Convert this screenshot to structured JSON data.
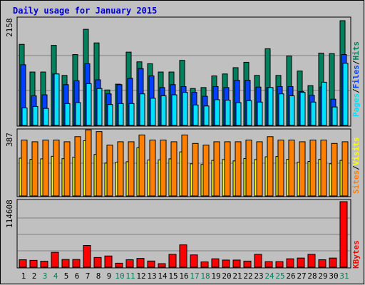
{
  "colors": {
    "background": "#c0c0c0",
    "title": "#0000cc",
    "hits": "#00805c",
    "files": "#0040ff",
    "pages": "#00e0ff",
    "visits": "#ffff00",
    "sites": "#ff8000",
    "kbytes": "#ff0000",
    "weekend": "#00805c",
    "weekday": "#000000"
  },
  "chart_data": [
    {
      "type": "bar",
      "title": "Daily usage for January 2015",
      "ymax_label": "2158",
      "ylim": [
        0,
        2158
      ],
      "legend_position": "right",
      "categories": [
        "1",
        "2",
        "3",
        "4",
        "5",
        "6",
        "7",
        "8",
        "9",
        "10",
        "11",
        "12",
        "13",
        "14",
        "15",
        "16",
        "17",
        "18",
        "19",
        "20",
        "21",
        "22",
        "23",
        "24",
        "25",
        "26",
        "27",
        "28",
        "29",
        "30",
        "31"
      ],
      "weekend_days": [
        "3",
        "4",
        "10",
        "11",
        "17",
        "18",
        "24",
        "25",
        "31"
      ],
      "series": [
        {
          "name": "Hits",
          "values": [
            1670,
            1100,
            1100,
            1650,
            1030,
            1460,
            1980,
            1700,
            730,
            850,
            1510,
            1310,
            1270,
            1100,
            1100,
            1340,
            760,
            780,
            1020,
            1060,
            1190,
            1300,
            1030,
            1580,
            1030,
            1430,
            1120,
            820,
            1490,
            1480,
            2158
          ]
        },
        {
          "name": "Files",
          "values": [
            1250,
            610,
            630,
            1060,
            840,
            920,
            1270,
            940,
            650,
            840,
            970,
            1170,
            1020,
            780,
            840,
            800,
            680,
            600,
            800,
            780,
            930,
            930,
            790,
            780,
            800,
            800,
            700,
            620,
            790,
            540,
            1460
          ]
        },
        {
          "name": "Pages",
          "values": [
            360,
            390,
            350,
            1060,
            450,
            470,
            860,
            760,
            430,
            450,
            450,
            650,
            560,
            610,
            630,
            680,
            420,
            400,
            530,
            520,
            470,
            510,
            480,
            780,
            650,
            610,
            680,
            480,
            890,
            380,
            1280
          ]
        }
      ]
    },
    {
      "type": "bar",
      "ymax_label": "387",
      "ylim": [
        0,
        387
      ],
      "legend_position": "right",
      "series": [
        {
          "name": "Visits",
          "values": [
            223,
            216,
            219,
            234,
            220,
            229,
            326,
            245,
            194,
            199,
            202,
            284,
            212,
            213,
            219,
            260,
            190,
            186,
            210,
            215,
            207,
            221,
            215,
            231,
            233,
            216,
            199,
            204,
            216,
            190,
            210
          ]
        },
        {
          "name": "Sites",
          "values": [
            330,
            320,
            330,
            330,
            320,
            350,
            390,
            380,
            300,
            320,
            320,
            360,
            330,
            330,
            320,
            360,
            310,
            300,
            320,
            320,
            320,
            330,
            320,
            350,
            330,
            330,
            320,
            330,
            330,
            310,
            320
          ]
        }
      ]
    },
    {
      "type": "bar",
      "ymax_label": "114608",
      "ylim": [
        0,
        114608
      ],
      "legend_position": "right",
      "series": [
        {
          "name": "KBytes",
          "values": [
            13000,
            12000,
            10500,
            26000,
            13500,
            13500,
            38000,
            17000,
            19600,
            7000,
            13000,
            15400,
            10800,
            6200,
            22500,
            39000,
            21500,
            9200,
            14700,
            12500,
            12500,
            10700,
            22500,
            9700,
            9700,
            14700,
            16000,
            22500,
            13000,
            16000,
            114608
          ]
        }
      ]
    }
  ],
  "legend": {
    "top": [
      {
        "text": "Pages",
        "color": "#00e0ff"
      },
      {
        "text": "/",
        "color": "#000000"
      },
      {
        "text": "Files",
        "color": "#0040ff"
      },
      {
        "text": "/",
        "color": "#000000"
      },
      {
        "text": "Hits",
        "color": "#00805c"
      }
    ],
    "middle": [
      {
        "text": "Sites",
        "color": "#ff8000"
      },
      {
        "text": "/",
        "color": "#000000"
      },
      {
        "text": "Visits",
        "color": "#ffff00"
      }
    ],
    "bottom": [
      {
        "text": "KBytes",
        "color": "#ff0000"
      }
    ]
  }
}
